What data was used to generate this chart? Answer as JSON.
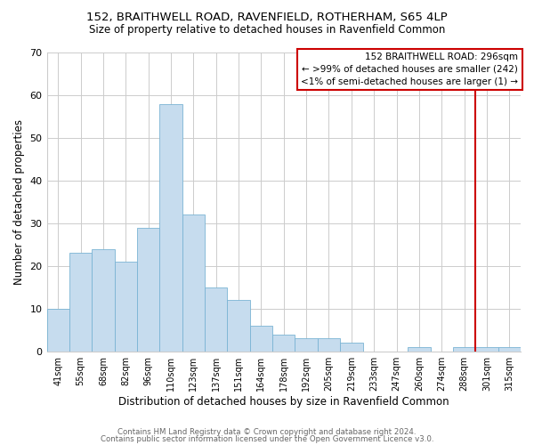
{
  "title1": "152, BRAITHWELL ROAD, RAVENFIELD, ROTHERHAM, S65 4LP",
  "title2": "Size of property relative to detached houses in Ravenfield Common",
  "xlabel": "Distribution of detached houses by size in Ravenfield Common",
  "ylabel": "Number of detached properties",
  "footer1": "Contains HM Land Registry data © Crown copyright and database right 2024.",
  "footer2": "Contains public sector information licensed under the Open Government Licence v3.0.",
  "bar_labels": [
    "41sqm",
    "55sqm",
    "68sqm",
    "82sqm",
    "96sqm",
    "110sqm",
    "123sqm",
    "137sqm",
    "151sqm",
    "164sqm",
    "178sqm",
    "192sqm",
    "205sqm",
    "219sqm",
    "233sqm",
    "247sqm",
    "260sqm",
    "274sqm",
    "288sqm",
    "301sqm",
    "315sqm"
  ],
  "bar_values": [
    10,
    23,
    24,
    21,
    29,
    58,
    32,
    15,
    12,
    6,
    4,
    3,
    3,
    2,
    0,
    0,
    1,
    0,
    1,
    1,
    1
  ],
  "bar_color": "#c6dcee",
  "bar_edge_color": "#7ab4d4",
  "ylim": [
    0,
    70
  ],
  "yticks": [
    0,
    10,
    20,
    30,
    40,
    50,
    60,
    70
  ],
  "vline_color": "#cc0000",
  "annotation_title": "152 BRAITHWELL ROAD: 296sqm",
  "annotation_line1": "← >99% of detached houses are smaller (242)",
  "annotation_line2": "<1% of semi-detached houses are larger (1) →",
  "annotation_box_color": "#ffffff",
  "annotation_box_edge": "#cc0000",
  "background_color": "#ffffff",
  "grid_color": "#cccccc"
}
